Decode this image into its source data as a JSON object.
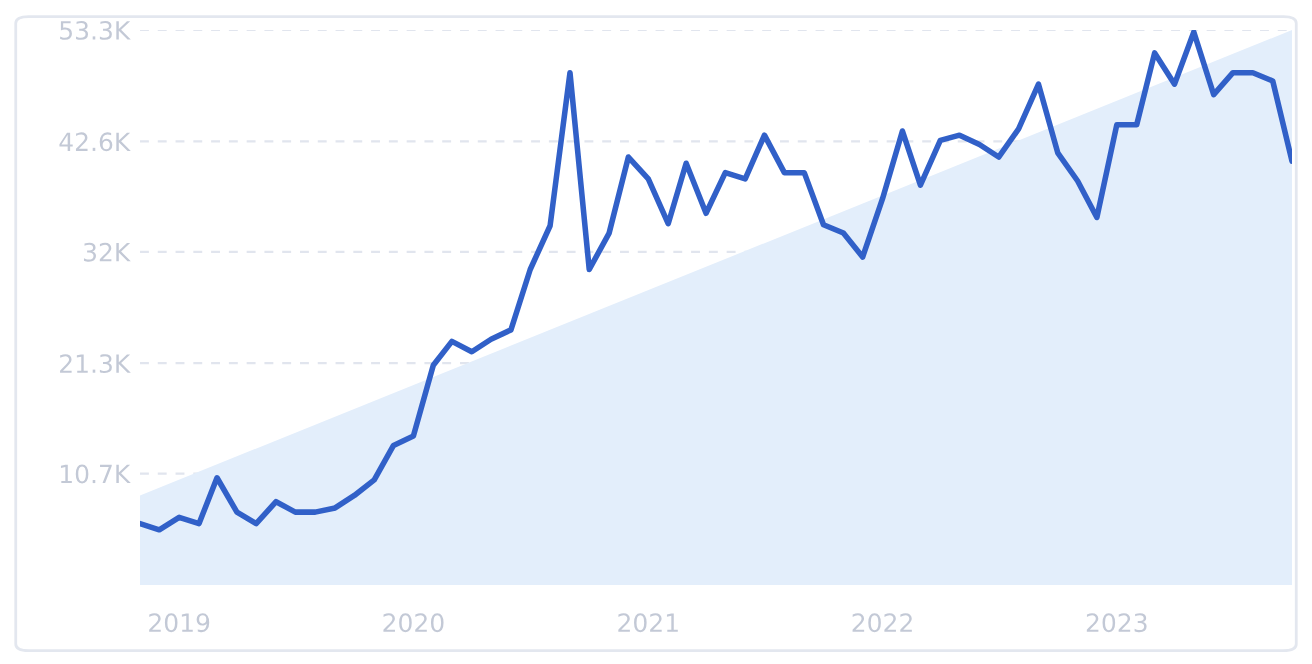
{
  "chart_data": {
    "type": "line",
    "x": [
      "2018-11",
      "2018-12",
      "2019-01",
      "2019-02",
      "2019-03",
      "2019-04",
      "2019-05",
      "2019-06",
      "2019-07",
      "2019-08",
      "2019-09",
      "2019-10",
      "2019-11",
      "2019-12",
      "2020-01",
      "2020-02",
      "2020-03",
      "2020-04",
      "2020-05",
      "2020-06",
      "2020-07",
      "2020-08",
      "2020-09",
      "2020-10",
      "2020-11",
      "2020-12",
      "2021-01",
      "2021-02",
      "2021-03",
      "2021-04",
      "2021-05",
      "2021-06",
      "2021-07",
      "2021-08",
      "2021-09",
      "2021-10",
      "2021-11",
      "2021-12",
      "2022-01",
      "2022-02",
      "2022-03",
      "2022-04",
      "2022-05",
      "2022-06",
      "2022-07",
      "2022-08",
      "2022-09",
      "2022-10",
      "2022-11",
      "2022-12",
      "2023-01",
      "2023-02",
      "2023-03",
      "2023-04",
      "2023-05",
      "2023-06",
      "2023-07",
      "2023-08",
      "2023-09",
      "2023-10"
    ],
    "series": [
      {
        "color": "#3160c8",
        "values": [
          5900,
          5300,
          6500,
          5900,
          10300,
          7000,
          5900,
          8000,
          7000,
          7000,
          7400,
          8600,
          10100,
          13400,
          14300,
          21100,
          23400,
          22400,
          23600,
          24500,
          30300,
          34500,
          49200,
          30300,
          33800,
          41100,
          39000,
          34700,
          40500,
          35700,
          39600,
          39000,
          43200,
          39600,
          39600,
          34600,
          33800,
          31500,
          37100,
          43600,
          38400,
          42700,
          43200,
          42300,
          41100,
          43800,
          48100,
          41500,
          38800,
          35300,
          44200,
          44200,
          51100,
          48100,
          53100,
          47100,
          49200,
          49200,
          48400,
          40700
        ]
      },
      {
        "type": "area",
        "color": "#e3eefb",
        "x": [
          "2018-11",
          "2023-10"
        ],
        "values": [
          8600,
          53300
        ]
      }
    ],
    "xlim": [
      "2018-11",
      "2023-10"
    ],
    "xticks": [
      {
        "value": "2019-01",
        "label": "2019"
      },
      {
        "value": "2020-01",
        "label": "2020"
      },
      {
        "value": "2021-01",
        "label": "2021"
      },
      {
        "value": "2022-01",
        "label": "2022"
      },
      {
        "value": "2023-01",
        "label": "2023"
      }
    ],
    "ylim": [
      0,
      53300
    ],
    "yticks": [
      {
        "value": 10700,
        "label": "10.7K"
      },
      {
        "value": 21300,
        "label": "21.3K"
      },
      {
        "value": 32000,
        "label": "32K"
      },
      {
        "value": 42600,
        "label": "42.6K"
      },
      {
        "value": 53300,
        "label": "53.3K"
      }
    ],
    "grid": "y",
    "line_style": "solid",
    "legend": false
  }
}
